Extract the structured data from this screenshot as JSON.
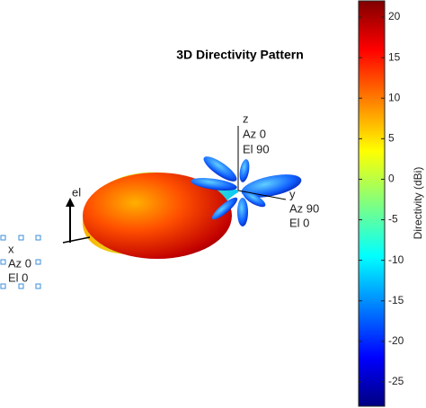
{
  "chart_data": {
    "type": "directivity-3d",
    "title": "3D Directivity Pattern",
    "axis_labels": {
      "x": [
        "x",
        "Az 0",
        "El 0"
      ],
      "y": [
        "y",
        "Az 90",
        "El 0"
      ],
      "z": [
        "z",
        "Az 0",
        "El 90"
      ],
      "el": "el"
    },
    "colorbar": {
      "label": "Directivity (dBi)",
      "lim": [
        -28,
        22
      ],
      "ticks": [
        -25,
        -20,
        -15,
        -10,
        -5,
        0,
        5,
        10,
        15,
        20
      ]
    }
  }
}
